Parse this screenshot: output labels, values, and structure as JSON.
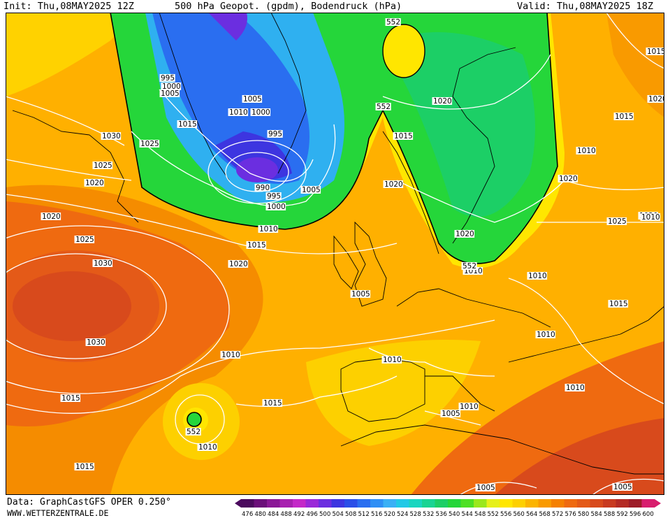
{
  "header": {
    "init": "Init: Thu,08MAY2025 12Z",
    "title": "500 hPa Geopot. (gpdm), Bodendruck (hPa)",
    "valid": "Valid: Thu,08MAY2025 18Z"
  },
  "footer": {
    "source": "Data: GraphCastGFS OPER 0.250°",
    "site": "WWW.WETTERZENTRALE.DE"
  },
  "pressure_labels": [
    "995",
    "1000",
    "1005",
    "1005",
    "1010",
    "1000",
    "1015",
    "1025",
    "1030",
    "1025",
    "1020",
    "1020",
    "1025",
    "1030",
    "1030",
    "995",
    "990",
    "995",
    "1000",
    "1005",
    "1010",
    "1015",
    "1020",
    "1015",
    "1020",
    "1020",
    "1020",
    "1015",
    "1020",
    "1015",
    "1010",
    "1020",
    "1025",
    "1020",
    "1015",
    "1010",
    "1010",
    "1010",
    "1005",
    "1010",
    "1010",
    "1005",
    "1005",
    "1005",
    "1010",
    "1015",
    "1015",
    "1015",
    "1010",
    "1010",
    "1010"
  ],
  "geopot_labels": [
    "552",
    "552",
    "552",
    "552"
  ],
  "scale": {
    "values": [
      "476",
      "480",
      "484",
      "488",
      "492",
      "496",
      "500",
      "504",
      "508",
      "512",
      "516",
      "520",
      "524",
      "528",
      "532",
      "536",
      "540",
      "544",
      "548",
      "552",
      "556",
      "560",
      "564",
      "568",
      "572",
      "576",
      "580",
      "584",
      "588",
      "592",
      "596",
      "600"
    ],
    "colors": [
      "#4b0a5e",
      "#6b0f7a",
      "#8a1896",
      "#a820b0",
      "#c428c8",
      "#9a28d8",
      "#6b2ee0",
      "#3d35e0",
      "#2a4ee8",
      "#2a6ef0",
      "#2f8ff5",
      "#3ab0f5",
      "#22c9e6",
      "#1ad6c0",
      "#19d493",
      "#1ccf66",
      "#25d63a",
      "#4ee024",
      "#9ae81c",
      "#e6f01a",
      "#ffe600",
      "#fdd000",
      "#fbb400",
      "#f99a00",
      "#f58000",
      "#ef6a10",
      "#e45a18",
      "#d84a1c",
      "#c83a20",
      "#b42a24",
      "#9e1c28",
      "#d81e6e"
    ]
  }
}
